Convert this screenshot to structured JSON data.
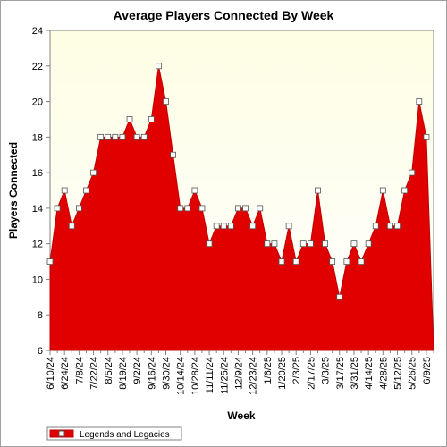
{
  "chart_data": {
    "type": "area",
    "title": "Average Players Connected By Week",
    "xlabel": "Week",
    "ylabel": "Players Connected",
    "ylim": [
      6,
      24
    ],
    "yticks": [
      6,
      8,
      10,
      12,
      14,
      16,
      18,
      20,
      22,
      24
    ],
    "grid": false,
    "legend_position": "bottom-left",
    "colors": {
      "fill": "#e00000",
      "line": "#c00000",
      "marker_fill": "#ffffff",
      "marker_stroke": "#555555",
      "plot_bg_top": "#fefee4",
      "plot_bg_bottom": "#ffffff",
      "tick_color": "#808080"
    },
    "tick_labels": [
      "6/10/24",
      "6/24/24",
      "7/8/24",
      "7/22/24",
      "8/5/24",
      "8/19/24",
      "9/2/24",
      "9/16/24",
      "9/30/24",
      "10/14/24",
      "10/28/24",
      "11/11/24",
      "11/25/24",
      "12/9/24",
      "12/23/24",
      "1/6/25",
      "1/20/25",
      "2/3/25",
      "2/17/25",
      "3/3/25",
      "3/17/25",
      "3/31/25",
      "4/14/25",
      "4/28/25",
      "5/12/25",
      "5/26/25",
      "6/9/25"
    ],
    "x": [
      "6/10/24",
      "6/17/24",
      "6/24/24",
      "7/1/24",
      "7/8/24",
      "7/15/24",
      "7/22/24",
      "7/29/24",
      "8/5/24",
      "8/12/24",
      "8/19/24",
      "8/26/24",
      "9/2/24",
      "9/9/24",
      "9/16/24",
      "9/23/24",
      "9/30/24",
      "10/7/24",
      "10/14/24",
      "10/21/24",
      "10/28/24",
      "11/4/24",
      "11/11/24",
      "11/18/24",
      "11/25/24",
      "12/2/24",
      "12/9/24",
      "12/16/24",
      "12/23/24",
      "12/30/24",
      "1/6/25",
      "1/13/25",
      "1/20/25",
      "1/27/25",
      "2/3/25",
      "2/10/25",
      "2/17/25",
      "2/24/25",
      "3/3/25",
      "3/10/25",
      "3/17/25",
      "3/24/25",
      "3/31/25",
      "4/7/25",
      "4/14/25",
      "4/21/25",
      "4/28/25",
      "5/5/25",
      "5/12/25",
      "5/19/25",
      "5/26/25",
      "6/2/25",
      "6/9/25",
      "6/16/25"
    ],
    "series": [
      {
        "name": "Legends and Legacies",
        "values": [
          11,
          14,
          15,
          13,
          14,
          15,
          16,
          18,
          18,
          18,
          18,
          19,
          18,
          18,
          19,
          22,
          20,
          17,
          14,
          14,
          15,
          14,
          12,
          13,
          13,
          13,
          14,
          14,
          13,
          14,
          12,
          12,
          11,
          13,
          11,
          12,
          12,
          15,
          12,
          11,
          9,
          11,
          12,
          11,
          12,
          13,
          15,
          13,
          13,
          15,
          16,
          20,
          18,
          6
        ]
      }
    ]
  }
}
